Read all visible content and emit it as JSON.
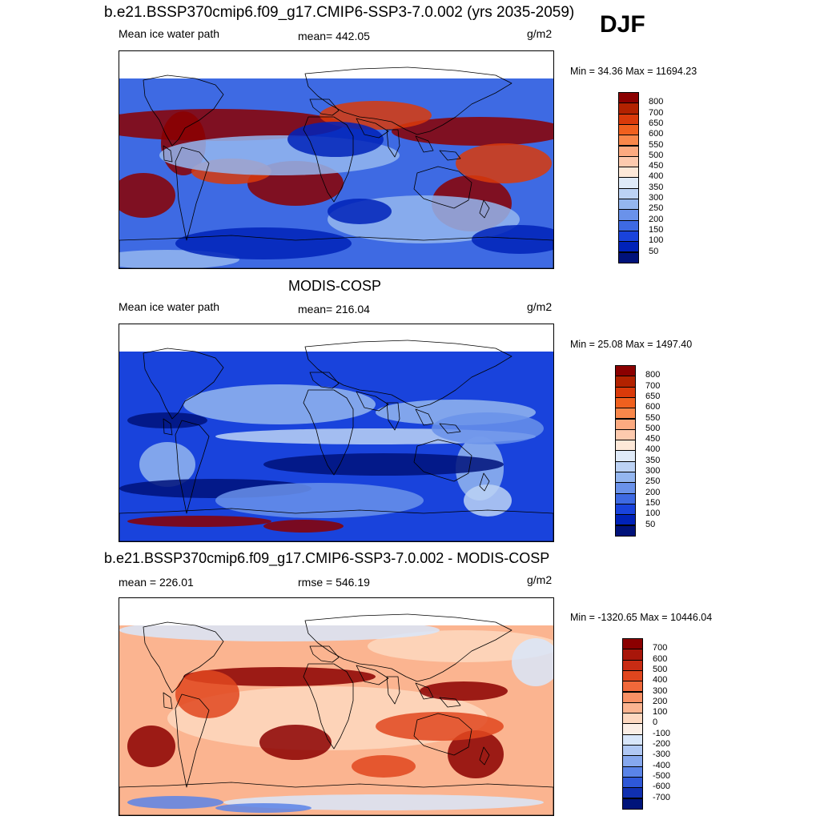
{
  "title": "b.e21.BSSP370cmip6.f09_g17.CMIP6-SSP3-7.0.002 (yrs 2035-2059)",
  "season": "DJF",
  "panels": [
    {
      "title": "",
      "left_label": "Mean ice water path",
      "center_label": "mean= 442.05",
      "units": "g/m2",
      "minmax": "Min =  34.36 Max = 11694.23",
      "colorbar": {
        "labels": [
          "800",
          "700",
          "650",
          "600",
          "550",
          "500",
          "450",
          "400",
          "350",
          "300",
          "250",
          "200",
          "150",
          "100",
          "50"
        ],
        "colors": [
          "#8b0000",
          "#b22200",
          "#d93a0a",
          "#f0601e",
          "#f9874a",
          "#fcaa80",
          "#fdcaae",
          "#fde8d8",
          "#dfeaf8",
          "#bcd2f4",
          "#94b6ef",
          "#6a92ea",
          "#3e6ae3",
          "#1943dc",
          "#0022b8",
          "#00127a"
        ]
      }
    },
    {
      "title": "MODIS-COSP",
      "left_label": "Mean ice water path",
      "center_label": "mean= 216.04",
      "units": "g/m2",
      "minmax": "Min =  25.08 Max = 1497.40",
      "colorbar": {
        "labels": [
          "800",
          "700",
          "650",
          "600",
          "550",
          "500",
          "450",
          "400",
          "350",
          "300",
          "250",
          "200",
          "150",
          "100",
          "50"
        ],
        "colors": [
          "#8b0000",
          "#b22200",
          "#d93a0a",
          "#f0601e",
          "#f9874a",
          "#fcaa80",
          "#fdcaae",
          "#fde8d8",
          "#dfeaf8",
          "#bcd2f4",
          "#94b6ef",
          "#6a92ea",
          "#3e6ae3",
          "#1943dc",
          "#0022b8",
          "#00127a"
        ]
      }
    },
    {
      "title": "b.e21.BSSP370cmip6.f09_g17.CMIP6-SSP3-7.0.002 - MODIS-COSP",
      "left_label": "mean = 226.01",
      "center_label": "rmse = 546.19",
      "units": "g/m2",
      "minmax": "Min = -1320.65 Max = 10446.04",
      "colorbar": {
        "labels": [
          "700",
          "600",
          "500",
          "400",
          "300",
          "200",
          "100",
          "0",
          "-100",
          "-200",
          "-300",
          "-400",
          "-500",
          "-600",
          "-700"
        ],
        "colors": [
          "#8b0000",
          "#a8160a",
          "#c82c14",
          "#e0461e",
          "#f0683a",
          "#f89064",
          "#fbb490",
          "#fdd8c0",
          "#fbeee6",
          "#d8e6fa",
          "#b0c8f4",
          "#86a8ee",
          "#5a84e8",
          "#2e58d8",
          "#1030b0",
          "#00147a"
        ]
      }
    }
  ]
}
